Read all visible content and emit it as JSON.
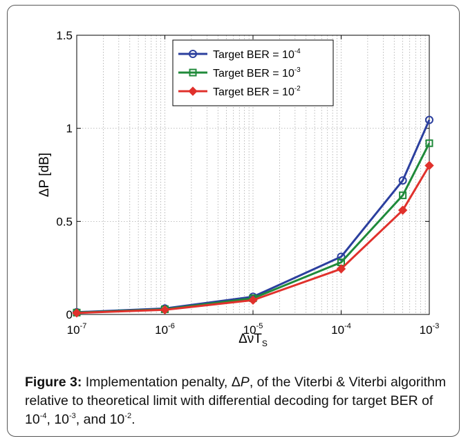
{
  "chart_data": {
    "type": "line",
    "x_scale": "log",
    "x_tick_labels": [
      {
        "base": "10",
        "exp": "-7"
      },
      {
        "base": "10",
        "exp": "-6"
      },
      {
        "base": "10",
        "exp": "-5"
      },
      {
        "base": "10",
        "exp": "-4"
      },
      {
        "base": "10",
        "exp": "-3"
      }
    ],
    "x_ticks": [
      1e-07,
      1e-06,
      1e-05,
      0.0001,
      0.001
    ],
    "y_ticks": [
      0,
      0.5,
      1,
      1.5
    ],
    "y_tick_labels": [
      "0",
      "0.5",
      "1",
      "1.5"
    ],
    "xlim": [
      1e-07,
      0.001
    ],
    "ylim": [
      0,
      1.5
    ],
    "xlabel": {
      "main": "ΔνT",
      "sub": "S"
    },
    "ylabel": "ΔP [dB]",
    "grid": true,
    "legend_position": "top-center",
    "x": [
      1e-07,
      1e-06,
      1e-05,
      0.0001,
      0.0005,
      0.001
    ],
    "series": [
      {
        "name_base": "Target BER = 10",
        "name_exp": "-4",
        "color": "#2b3f9e",
        "marker": "circle",
        "values": [
          0.012,
          0.032,
          0.095,
          0.31,
          0.72,
          1.045
        ]
      },
      {
        "name_base": "Target BER = 10",
        "name_exp": "-3",
        "color": "#1f8a3a",
        "marker": "square",
        "values": [
          0.01,
          0.028,
          0.087,
          0.28,
          0.64,
          0.92
        ]
      },
      {
        "name_base": "Target BER = 10",
        "name_exp": "-2",
        "color": "#e0312c",
        "marker": "diamond",
        "values": [
          0.008,
          0.025,
          0.077,
          0.245,
          0.56,
          0.8
        ]
      }
    ]
  },
  "caption": {
    "label": "Figure 3:",
    "text1": " Implementation penalty, Δ",
    "text_italic": "P",
    "text2": ", of the Viterbi & Viterbi algorithm relative to theoretical limit with differential decoding for target BER of 10",
    "exp1": "-4",
    "text3": ", 10",
    "exp2": "-3",
    "text4": ", and 10",
    "exp3": "-2",
    "text5": "."
  }
}
